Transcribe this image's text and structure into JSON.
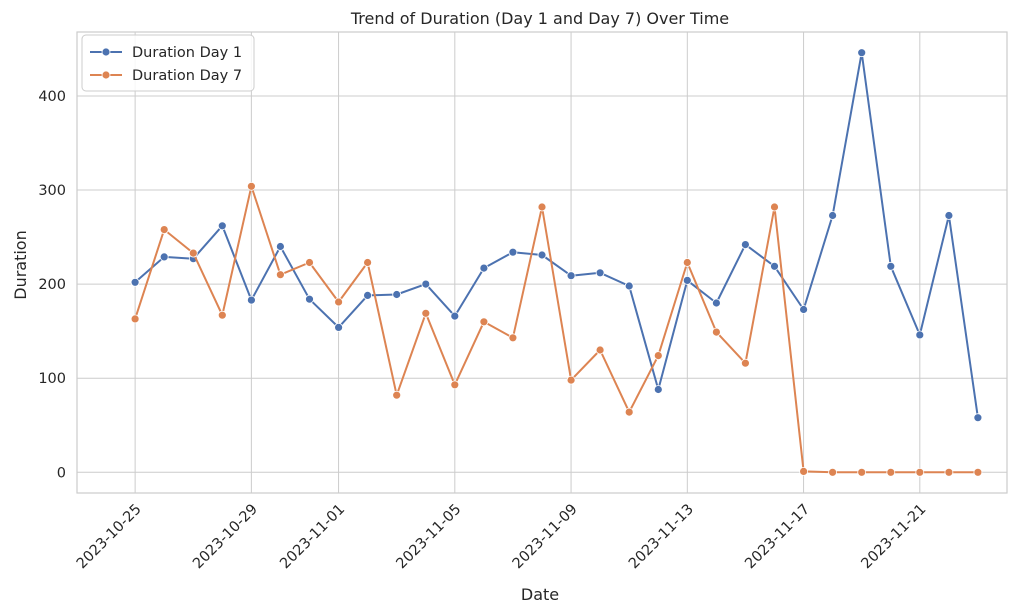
{
  "chart_data": {
    "type": "line",
    "title": "Trend of Duration (Day 1 and Day 7) Over Time",
    "xlabel": "Date",
    "ylabel": "Duration",
    "x": [
      "2023-10-25",
      "2023-10-26",
      "2023-10-27",
      "2023-10-28",
      "2023-10-29",
      "2023-10-30",
      "2023-10-31",
      "2023-11-01",
      "2023-11-02",
      "2023-11-03",
      "2023-11-04",
      "2023-11-05",
      "2023-11-06",
      "2023-11-07",
      "2023-11-08",
      "2023-11-09",
      "2023-11-10",
      "2023-11-11",
      "2023-11-12",
      "2023-11-13",
      "2023-11-14",
      "2023-11-15",
      "2023-11-16",
      "2023-11-17",
      "2023-11-18",
      "2023-11-19",
      "2023-11-20",
      "2023-11-21",
      "2023-11-22",
      "2023-11-23"
    ],
    "series": [
      {
        "name": "Duration Day 1",
        "color": "#4c72b0",
        "values": [
          202,
          229,
          227,
          262,
          183,
          240,
          184,
          154,
          188,
          189,
          200,
          166,
          217,
          234,
          231,
          209,
          212,
          198,
          88,
          204,
          180,
          242,
          219,
          173,
          273,
          446,
          219,
          146,
          273,
          58
        ]
      },
      {
        "name": "Duration Day 7",
        "color": "#dd8452",
        "values": [
          163,
          258,
          233,
          167,
          304,
          210,
          223,
          181,
          223,
          82,
          169,
          93,
          160,
          143,
          282,
          98,
          130,
          64,
          124,
          223,
          149,
          116,
          282,
          1,
          0,
          0,
          0,
          0,
          0,
          0
        ]
      }
    ],
    "x_ticks": [
      "2023-10-25",
      "2023-10-29",
      "2023-11-01",
      "2023-11-05",
      "2023-11-09",
      "2023-11-13",
      "2023-11-17",
      "2023-11-21"
    ],
    "y_ticks": [
      0,
      100,
      200,
      300,
      400
    ],
    "xlim": [
      "2023-10-23",
      "2023-11-24"
    ],
    "ylim": [
      -22,
      468
    ],
    "grid": true,
    "legend_position": "top-left"
  }
}
